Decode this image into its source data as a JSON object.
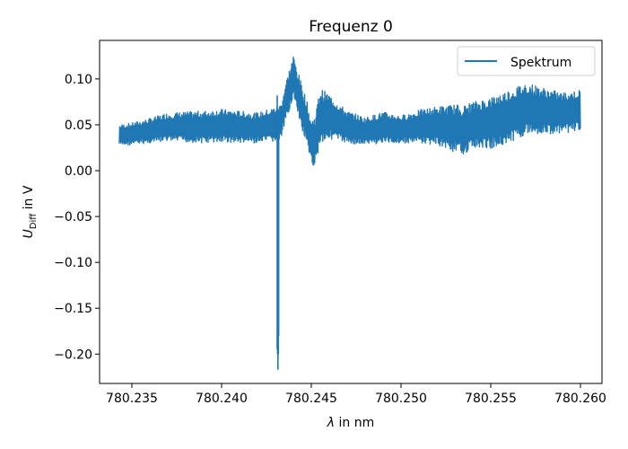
{
  "chart_data": {
    "type": "line",
    "title": "Frequenz 0",
    "xlabel_symbol": "λ",
    "xlabel_rest": " in nm",
    "ylabel_main": "U",
    "ylabel_sub": "Diff",
    "ylabel_rest": " in V",
    "xlim": [
      780.2332,
      780.2612
    ],
    "ylim": [
      -0.232,
      0.142
    ],
    "xticks": [
      780.235,
      780.24,
      780.245,
      780.25,
      780.255,
      780.26
    ],
    "xtick_labels": [
      "780.235",
      "780.240",
      "780.245",
      "780.250",
      "780.255",
      "780.260"
    ],
    "yticks": [
      0.1,
      0.05,
      0.0,
      -0.05,
      -0.1,
      -0.15,
      -0.2
    ],
    "ytick_labels": [
      "0.10",
      "0.05",
      "0.00",
      "−0.05",
      "−0.10",
      "−0.15",
      "−0.20"
    ],
    "grid": false,
    "legend": {
      "entries": [
        "Spektrum"
      ],
      "placement": "top-right"
    },
    "series": [
      {
        "name": "Spektrum",
        "color": "#1f77b4",
        "band": {
          "x": [
            780.2343,
            780.235,
            780.236,
            780.237,
            780.238,
            780.239,
            780.24,
            780.241,
            780.242,
            780.2428,
            780.2433,
            780.2436,
            780.244,
            780.2443,
            780.2447,
            780.245,
            780.2452,
            780.2455,
            780.246,
            780.247,
            780.248,
            780.249,
            780.25,
            780.251,
            780.252,
            780.253,
            780.2535,
            780.254,
            780.255,
            780.256,
            780.257,
            780.258,
            780.259,
            780.26
          ],
          "upper": [
            0.05,
            0.052,
            0.057,
            0.063,
            0.064,
            0.065,
            0.067,
            0.065,
            0.063,
            0.068,
            0.073,
            0.098,
            0.126,
            0.105,
            0.08,
            0.055,
            0.06,
            0.09,
            0.083,
            0.065,
            0.058,
            0.064,
            0.06,
            0.066,
            0.07,
            0.072,
            0.071,
            0.075,
            0.08,
            0.088,
            0.096,
            0.09,
            0.085,
            0.088
          ],
          "lower": [
            0.027,
            0.028,
            0.03,
            0.032,
            0.031,
            0.03,
            0.031,
            0.03,
            0.03,
            0.031,
            0.033,
            0.055,
            0.08,
            0.055,
            0.03,
            0.006,
            0.005,
            0.03,
            0.035,
            0.03,
            0.028,
            0.03,
            0.03,
            0.03,
            0.028,
            0.02,
            0.018,
            0.025,
            0.024,
            0.03,
            0.04,
            0.04,
            0.04,
            0.045
          ]
        },
        "spike": {
          "x": [
            780.2431,
            780.24312,
            780.24314,
            780.24316,
            780.24318
          ],
          "min": [
            -0.195,
            -0.2,
            -0.217,
            -0.2,
            -0.18
          ],
          "max": [
            0.082,
            0.06,
            0.04,
            0.03,
            0.035
          ]
        }
      }
    ]
  }
}
